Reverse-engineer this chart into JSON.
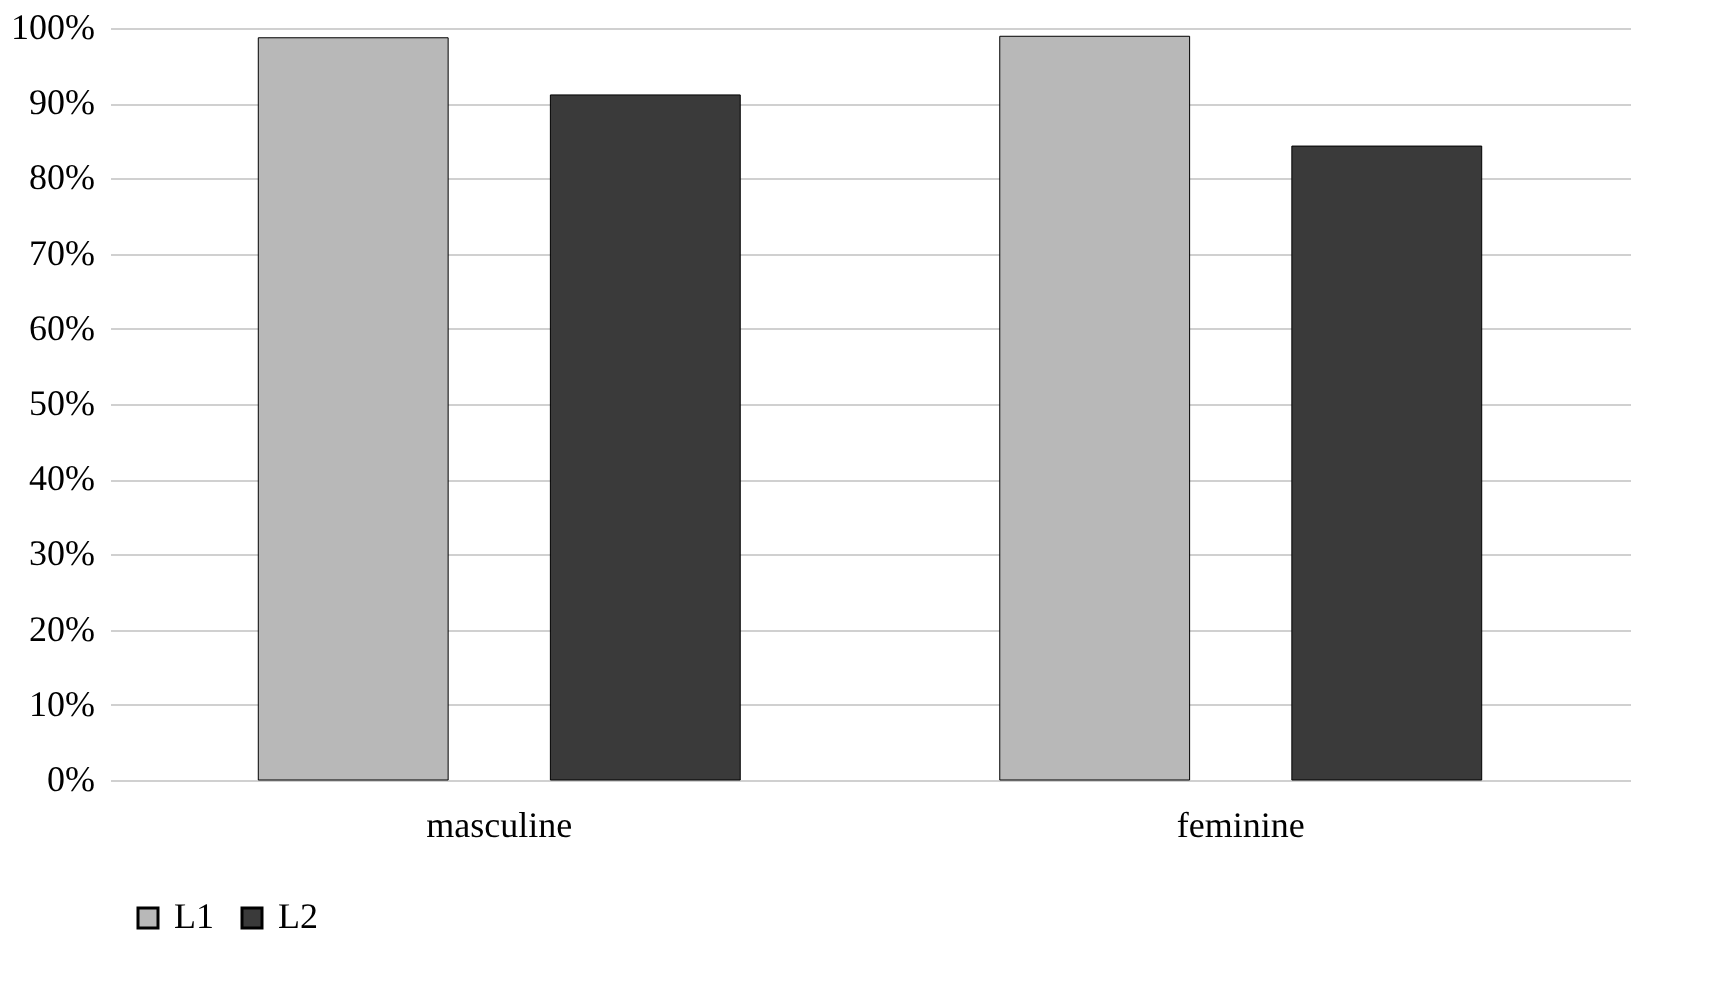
{
  "chart_data": {
    "type": "bar",
    "categories": [
      "masculine",
      "feminine"
    ],
    "series": [
      {
        "name": "L1",
        "color": "#b8b8b8",
        "values": [
          98.7,
          98.9
        ]
      },
      {
        "name": "L2",
        "color": "#3a3a3a",
        "values": [
          91.1,
          84.3
        ]
      }
    ],
    "ylim": [
      0,
      100
    ],
    "yticks": [
      {
        "value": 0,
        "label": "0%"
      },
      {
        "value": 10,
        "label": "10%"
      },
      {
        "value": 20,
        "label": "20%"
      },
      {
        "value": 30,
        "label": "30%"
      },
      {
        "value": 40,
        "label": "40%"
      },
      {
        "value": 50,
        "label": "50%"
      },
      {
        "value": 60,
        "label": "60%"
      },
      {
        "value": 70,
        "label": "70%"
      },
      {
        "value": 80,
        "label": "80%"
      },
      {
        "value": 90,
        "label": "90%"
      },
      {
        "value": 100,
        "label": "100%"
      }
    ],
    "grid": "y",
    "legend": "bottom"
  }
}
